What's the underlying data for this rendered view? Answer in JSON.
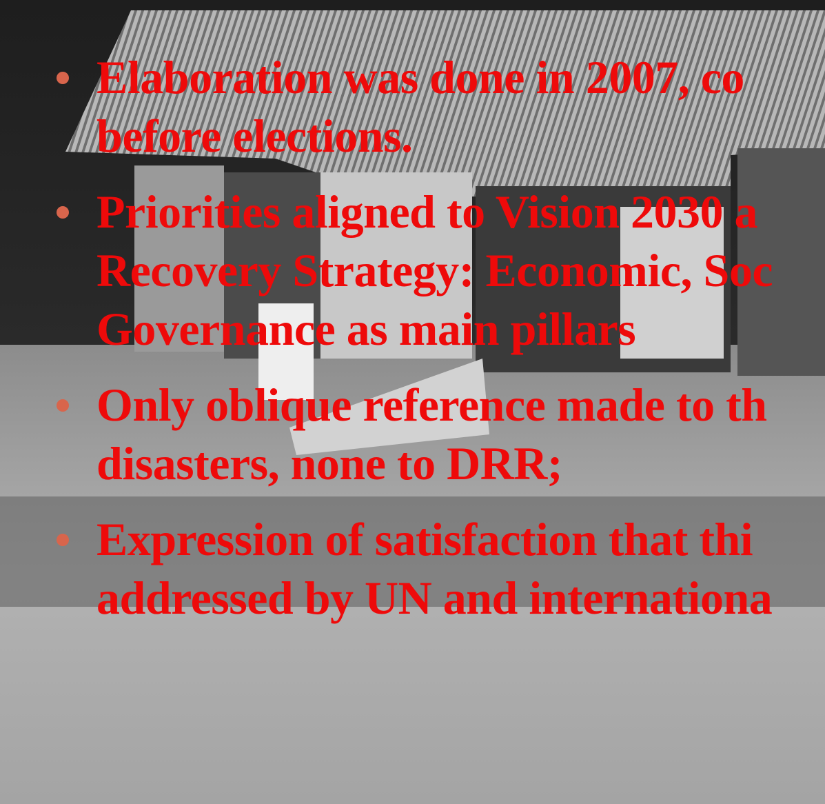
{
  "bullets": [
    {
      "lines": [
        "Elaboration was done in 2007, co",
        "before elections."
      ]
    },
    {
      "lines": [
        "Priorities aligned to Vision 2030 a",
        "Recovery Strategy: Economic, Soc",
        "Governance as main pillars"
      ]
    },
    {
      "lines": [
        "Only oblique reference made to th",
        "disasters, none to DRR;"
      ]
    },
    {
      "lines": [
        "Expression of satisfaction that thi",
        "addressed by UN and internationa"
      ]
    }
  ]
}
